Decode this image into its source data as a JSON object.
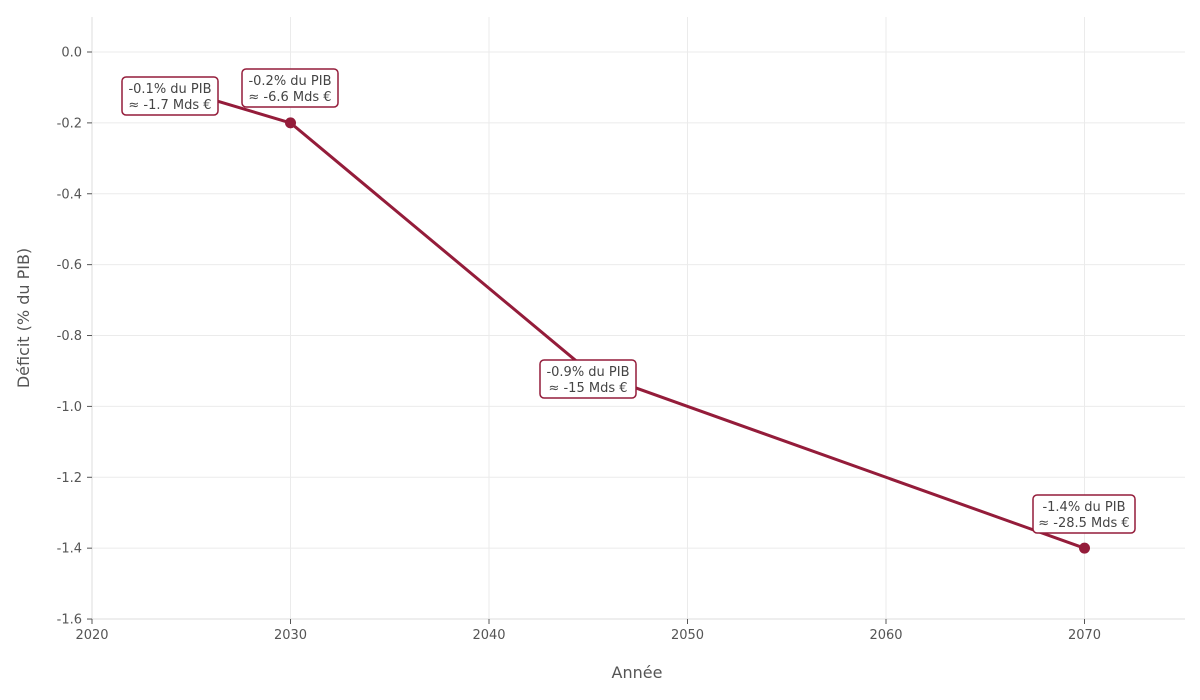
{
  "chart_data": {
    "type": "line",
    "title": "",
    "xlabel": "Année",
    "ylabel": "Déficit (% du PIB)",
    "xlim": [
      2020,
      2075
    ],
    "ylim": [
      -1.6,
      0.1
    ],
    "xticks": [
      2020,
      2030,
      2040,
      2050,
      2060,
      2070
    ],
    "yticks": [
      0.0,
      -0.2,
      -0.4,
      -0.6,
      -0.8,
      -1.0,
      -1.2,
      -1.4,
      -1.6
    ],
    "ytick_labels": [
      "0.0",
      "-0.2",
      "-0.4",
      "-0.6",
      "-0.8",
      "-1.0",
      "-1.2",
      "-1.4",
      "-1.6"
    ],
    "grid": true,
    "legend": null,
    "series": [
      {
        "name": "Déficit",
        "color": "#941c3a",
        "x": [
          2024,
          2030,
          2045,
          2070
        ],
        "values": [
          -0.1,
          -0.2,
          -0.9,
          -1.4
        ],
        "markers_visible_at": [
          2030,
          2070
        ]
      }
    ],
    "annotations": [
      {
        "x": 2024,
        "y": -0.1,
        "line1": "-0.1% du PIB",
        "line2": "≈ -1.7 Mds €"
      },
      {
        "x": 2030,
        "y": -0.2,
        "line1": "-0.2% du PIB",
        "line2": "≈ -6.6 Mds €"
      },
      {
        "x": 2045,
        "y": -0.9,
        "line1": "-0.9% du PIB",
        "line2": "≈ -15 Mds €"
      },
      {
        "x": 2070,
        "y": -1.4,
        "line1": "-1.4% du PIB",
        "line2": "≈ -28.5 Mds €"
      }
    ]
  },
  "style": {
    "line_color": "#941c3a",
    "grid_color": "#ebebeb",
    "axis_color": "#dddddd",
    "text_color": "#555555"
  }
}
